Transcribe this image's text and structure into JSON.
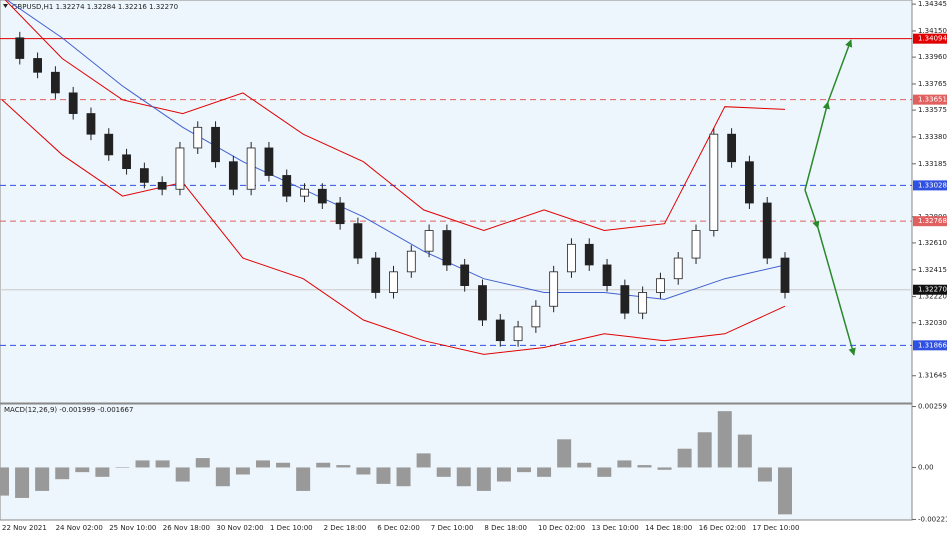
{
  "chart_data": {
    "type": "candlestick",
    "title": "GBPUSD,H1  1.32274 1.32284 1.32216 1.32270",
    "ylim": [
      1.31447,
      1.34375
    ],
    "yticks": [
      1.34345,
      {
        "value": 1.3415,
        "label": "1.34150"
      },
      {
        "value": 1.3396,
        "label": "1.33960"
      },
      1.33765,
      1.33575,
      {
        "value": 1.3338,
        "label": "1.33380"
      },
      1.33185,
      {
        "value": 1.328,
        "label": "1.32800"
      },
      {
        "value": 1.3261,
        "label": "1.32610"
      },
      1.32415,
      {
        "value": 1.3222,
        "label": "1.32220"
      },
      {
        "value": 1.3203,
        "label": "1.32030"
      },
      1.31645
    ],
    "levels": [
      {
        "value": 1.34094,
        "color": "#e00000",
        "dash": false
      },
      {
        "value": 1.33651,
        "color": "#e06060",
        "dash": true
      },
      {
        "value": 1.33028,
        "color": "#3050e0",
        "dash": true
      },
      {
        "value": 1.32768,
        "color": "#e06060",
        "dash": true
      },
      {
        "value": 1.3227,
        "label": "1.32270",
        "color": "#c8c8c8",
        "dash": false
      },
      {
        "value": 1.31866,
        "color": "#3050e0",
        "dash": true
      }
    ],
    "closes": [
      1.341,
      1.3395,
      1.3385,
      1.337,
      1.3355,
      1.334,
      1.3325,
      1.3315,
      1.3305,
      1.33,
      1.333,
      1.3345,
      1.332,
      1.33,
      1.333,
      1.331,
      1.3295,
      1.33,
      1.329,
      1.3275,
      1.325,
      1.3225,
      1.324,
      1.3255,
      1.327,
      1.3245,
      1.323,
      1.3205,
      1.319,
      1.32,
      1.3215,
      1.324,
      1.326,
      1.3245,
      1.323,
      1.321,
      1.3225,
      1.3235,
      1.325,
      1.327,
      1.334,
      1.332,
      1.329,
      1.325,
      1.3225
    ],
    "bands": [
      {
        "name": "upper",
        "color": "#e00000",
        "values": [
          1.344,
          1.3395,
          1.3365,
          1.3355,
          1.337,
          1.334,
          1.332,
          1.3285,
          1.327,
          1.3285,
          1.327,
          1.3275,
          1.336,
          1.3358
        ]
      },
      {
        "name": "lower",
        "color": "#e00000",
        "values": [
          1.3365,
          1.3325,
          1.3295,
          1.3305,
          1.325,
          1.3235,
          1.3205,
          1.319,
          1.318,
          1.3185,
          1.3195,
          1.319,
          1.3195,
          1.3215
        ]
      },
      {
        "name": "ma",
        "color": "#4060d0",
        "values": [
          1.344,
          1.341,
          1.3375,
          1.3345,
          1.332,
          1.33,
          1.328,
          1.3255,
          1.3235,
          1.3225,
          1.3225,
          1.322,
          1.3235,
          1.3245
        ]
      }
    ],
    "macd_title": "MACD(12,26,9) -0.001999 -0.001667",
    "macd_lim": [
      -0.00224,
      0.00262
    ],
    "macd_ticks": [
      0.002597,
      {
        "value": 0,
        "label": "0.00"
      },
      -0.002217
    ],
    "macd": [
      -0.0012,
      -0.0013,
      -0.001,
      -0.0005,
      -0.0002,
      -0.0004,
      0,
      0.0003,
      0.0003,
      -0.0006,
      0.0004,
      -0.0008,
      -0.0003,
      0.0003,
      0.0002,
      -0.001,
      0.0002,
      0.0001,
      -0.0003,
      -0.0007,
      -0.0008,
      0.0006,
      -0.0004,
      -0.0008,
      -0.001,
      -0.0006,
      -0.0002,
      -0.0004,
      0.0012,
      0.0002,
      -0.0004,
      0.0003,
      0.0001,
      -0.0001,
      0.0008,
      0.0015,
      0.0024,
      0.0014,
      -0.0006,
      -0.002
    ],
    "time_labels": [
      "22 Nov 2021",
      "24 Nov 02:00",
      "25 Nov 10:00",
      "26 Nov 18:00",
      "30 Nov 02:00",
      "1 Dec 10:00",
      "2 Dec 18:00",
      "6 Dec 02:00",
      "7 Dec 10:00",
      "8 Dec 18:00",
      "10 Dec 02:00",
      "13 Dec 10:00",
      "14 Dec 18:00",
      "16 Dec 02:00",
      "17 Dec 10:00"
    ]
  }
}
